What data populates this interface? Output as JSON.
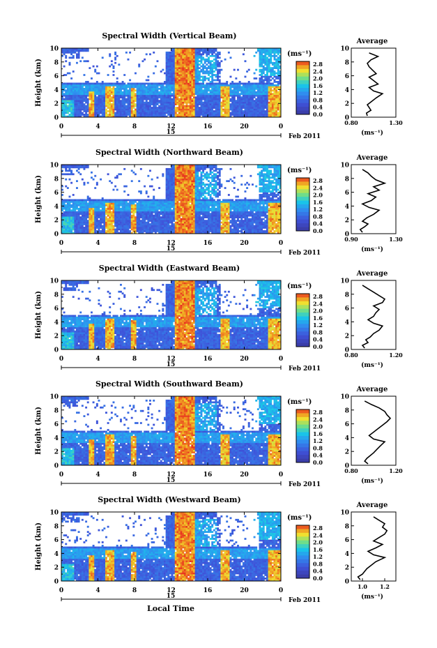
{
  "chart_data": [
    {
      "type": "heatmap",
      "title": "Spectral Width (Vertical Beam)",
      "ylabel": "Height (km)",
      "x_ticks": [
        "0",
        "4",
        "8",
        "12",
        "16",
        "20",
        "0"
      ],
      "xlim": [
        0,
        24
      ],
      "y_ticks": [
        "0",
        "2",
        "4",
        "6",
        "8",
        "10"
      ],
      "ylim": [
        0,
        10
      ],
      "colorbar": {
        "unit": "(ms⁻¹)",
        "ticks": [
          "2.8",
          "2.4",
          "2.0",
          "1.6",
          "1.2",
          "0.8",
          "0.4",
          "0.0"
        ],
        "range": [
          0,
          2.8
        ]
      },
      "date_marker": "15",
      "date_suffix": "Feb 2011",
      "average": {
        "title": "Average",
        "xlabel": "(ms⁻¹)",
        "x_ticks": [
          "0.80",
          "1.30"
        ],
        "xlim": [
          0.8,
          1.3
        ],
        "y_ticks": [
          "0",
          "2",
          "4",
          "6",
          "8",
          "10"
        ],
        "ylim": [
          0,
          10
        ],
        "x": [
          0.98,
          0.97,
          1.02,
          1.0,
          0.98,
          1.03,
          1.08,
          1.15,
          1.05,
          1.0,
          1.1,
          1.05,
          1.0,
          1.08,
          1.04,
          1.0,
          0.98,
          1.02,
          1.1,
          1.0
        ],
        "y": [
          0.2,
          0.6,
          1.0,
          1.4,
          1.8,
          2.3,
          2.8,
          3.4,
          3.8,
          4.3,
          4.8,
          5.3,
          5.8,
          6.3,
          6.8,
          7.3,
          7.8,
          8.3,
          8.8,
          9.3
        ]
      }
    },
    {
      "type": "heatmap",
      "title": "Spectral Width (Northward Beam)",
      "ylabel": "Height (km)",
      "x_ticks": [
        "0",
        "4",
        "8",
        "12",
        "16",
        "20",
        "0"
      ],
      "xlim": [
        0,
        24
      ],
      "y_ticks": [
        "0",
        "2",
        "4",
        "6",
        "8",
        "10"
      ],
      "ylim": [
        0,
        10
      ],
      "colorbar": {
        "unit": "(ms⁻¹)",
        "ticks": [
          "2.8",
          "2.4",
          "2.0",
          "1.6",
          "1.2",
          "0.8",
          "0.4",
          "0.0"
        ],
        "range": [
          0,
          2.8
        ]
      },
      "date_marker": "15",
      "date_suffix": "Feb 2011",
      "average": {
        "title": "Average",
        "xlabel": "(ms⁻¹)",
        "x_ticks": [
          "0.90",
          "1.30"
        ],
        "xlim": [
          0.9,
          1.3
        ],
        "y_ticks": [
          "0",
          "2",
          "4",
          "6",
          "8",
          "10"
        ],
        "ylim": [
          0,
          10
        ],
        "x": [
          1.0,
          0.98,
          1.02,
          1.05,
          1.0,
          1.04,
          1.1,
          1.15,
          1.06,
          1.0,
          1.08,
          1.12,
          1.05,
          1.15,
          1.1,
          1.2,
          1.12,
          1.08,
          1.05,
          1.0
        ],
        "y": [
          0.2,
          0.6,
          1.0,
          1.4,
          1.8,
          2.3,
          2.8,
          3.4,
          3.8,
          4.3,
          4.8,
          5.3,
          5.8,
          6.3,
          6.8,
          7.3,
          7.8,
          8.3,
          8.8,
          9.3
        ]
      }
    },
    {
      "type": "heatmap",
      "title": "Spectral Width (Eastward Beam)",
      "ylabel": "Height (km)",
      "x_ticks": [
        "0",
        "4",
        "8",
        "12",
        "16",
        "20",
        "0"
      ],
      "xlim": [
        0,
        24
      ],
      "y_ticks": [
        "0",
        "2",
        "4",
        "6",
        "8",
        "10"
      ],
      "ylim": [
        0,
        10
      ],
      "colorbar": {
        "unit": "(ms⁻¹)",
        "ticks": [
          "2.8",
          "2.4",
          "2.0",
          "1.6",
          "1.2",
          "0.8",
          "0.4",
          "0.0"
        ],
        "range": [
          0,
          2.8
        ]
      },
      "date_marker": "15",
      "date_suffix": "Feb 2011",
      "average": {
        "title": "Average",
        "xlabel": "(ms⁻¹)",
        "x_ticks": [
          "0.80",
          "1.20"
        ],
        "xlim": [
          0.8,
          1.2
        ],
        "y_ticks": [
          "0",
          "2",
          "4",
          "6",
          "8",
          "10"
        ],
        "ylim": [
          0,
          10
        ],
        "x": [
          0.92,
          0.9,
          0.95,
          0.93,
          0.97,
          1.0,
          1.05,
          1.08,
          1.0,
          0.95,
          1.0,
          1.02,
          1.05,
          1.0,
          1.08,
          1.1,
          1.05,
          1.0,
          0.95,
          0.9
        ],
        "y": [
          0.2,
          0.6,
          1.0,
          1.4,
          1.8,
          2.3,
          2.8,
          3.4,
          3.8,
          4.3,
          4.8,
          5.3,
          5.8,
          6.3,
          6.8,
          7.3,
          7.8,
          8.3,
          8.8,
          9.3
        ]
      }
    },
    {
      "type": "heatmap",
      "title": "Spectral Width (Southward Beam)",
      "ylabel": "Height (km)",
      "x_ticks": [
        "0",
        "4",
        "8",
        "12",
        "16",
        "20",
        "0"
      ],
      "xlim": [
        0,
        24
      ],
      "y_ticks": [
        "0",
        "2",
        "4",
        "6",
        "8",
        "10"
      ],
      "ylim": [
        0,
        10
      ],
      "colorbar": {
        "unit": "(ms⁻¹)",
        "ticks": [
          "2.8",
          "2.4",
          "2.0",
          "1.6",
          "1.2",
          "0.8",
          "0.4",
          "0.0"
        ],
        "range": [
          0,
          2.8
        ]
      },
      "date_marker": "15",
      "date_suffix": "Feb 2011",
      "average": {
        "title": "Average",
        "xlabel": "(ms⁻¹)",
        "x_ticks": [
          "0.80",
          "1.20"
        ],
        "xlim": [
          0.8,
          1.2
        ],
        "y_ticks": [
          "0",
          "2",
          "4",
          "6",
          "8",
          "10"
        ],
        "ylim": [
          0,
          10
        ],
        "x": [
          0.95,
          0.92,
          0.94,
          0.97,
          1.0,
          1.03,
          1.06,
          1.1,
          1.0,
          0.96,
          1.0,
          1.04,
          1.08,
          1.12,
          1.15,
          1.12,
          1.1,
          1.05,
          0.98,
          0.92
        ],
        "y": [
          0.2,
          0.6,
          1.0,
          1.4,
          1.8,
          2.3,
          2.8,
          3.4,
          3.8,
          4.3,
          4.8,
          5.3,
          5.8,
          6.3,
          6.8,
          7.3,
          7.8,
          8.3,
          8.8,
          9.3
        ]
      }
    },
    {
      "type": "heatmap",
      "title": "Spectral Width (Westward Beam)",
      "ylabel": "Height (km)",
      "xlabel": "Local Time",
      "x_ticks": [
        "0",
        "4",
        "8",
        "12",
        "16",
        "20",
        "0"
      ],
      "xlim": [
        0,
        24
      ],
      "y_ticks": [
        "0",
        "2",
        "4",
        "6",
        "8",
        "10"
      ],
      "ylim": [
        0,
        10
      ],
      "colorbar": {
        "unit": "(ms⁻¹)",
        "ticks": [
          "2.8",
          "2.4",
          "2.0",
          "1.6",
          "1.2",
          "0.8",
          "0.4",
          "0.0"
        ],
        "range": [
          0,
          2.8
        ]
      },
      "date_marker": "15",
      "date_suffix": "Feb 2011",
      "average": {
        "title": "Average",
        "xlabel": "(ms⁻¹)",
        "x_ticks": [
          "1.0",
          "1.2"
        ],
        "xlim": [
          0.9,
          1.3
        ],
        "y_ticks": [
          "0",
          "2",
          "4",
          "6",
          "8",
          "10"
        ],
        "ylim": [
          0,
          10
        ],
        "x": [
          0.98,
          0.96,
          1.0,
          1.02,
          1.04,
          1.08,
          1.12,
          1.2,
          1.1,
          1.05,
          1.12,
          1.18,
          1.1,
          1.15,
          1.2,
          1.22,
          1.18,
          1.2,
          1.15,
          1.1
        ],
        "y": [
          0.2,
          0.6,
          1.0,
          1.4,
          1.8,
          2.3,
          2.8,
          3.4,
          3.8,
          4.3,
          4.8,
          5.3,
          5.8,
          6.3,
          6.8,
          7.3,
          7.8,
          8.3,
          8.8,
          9.3
        ]
      }
    }
  ]
}
